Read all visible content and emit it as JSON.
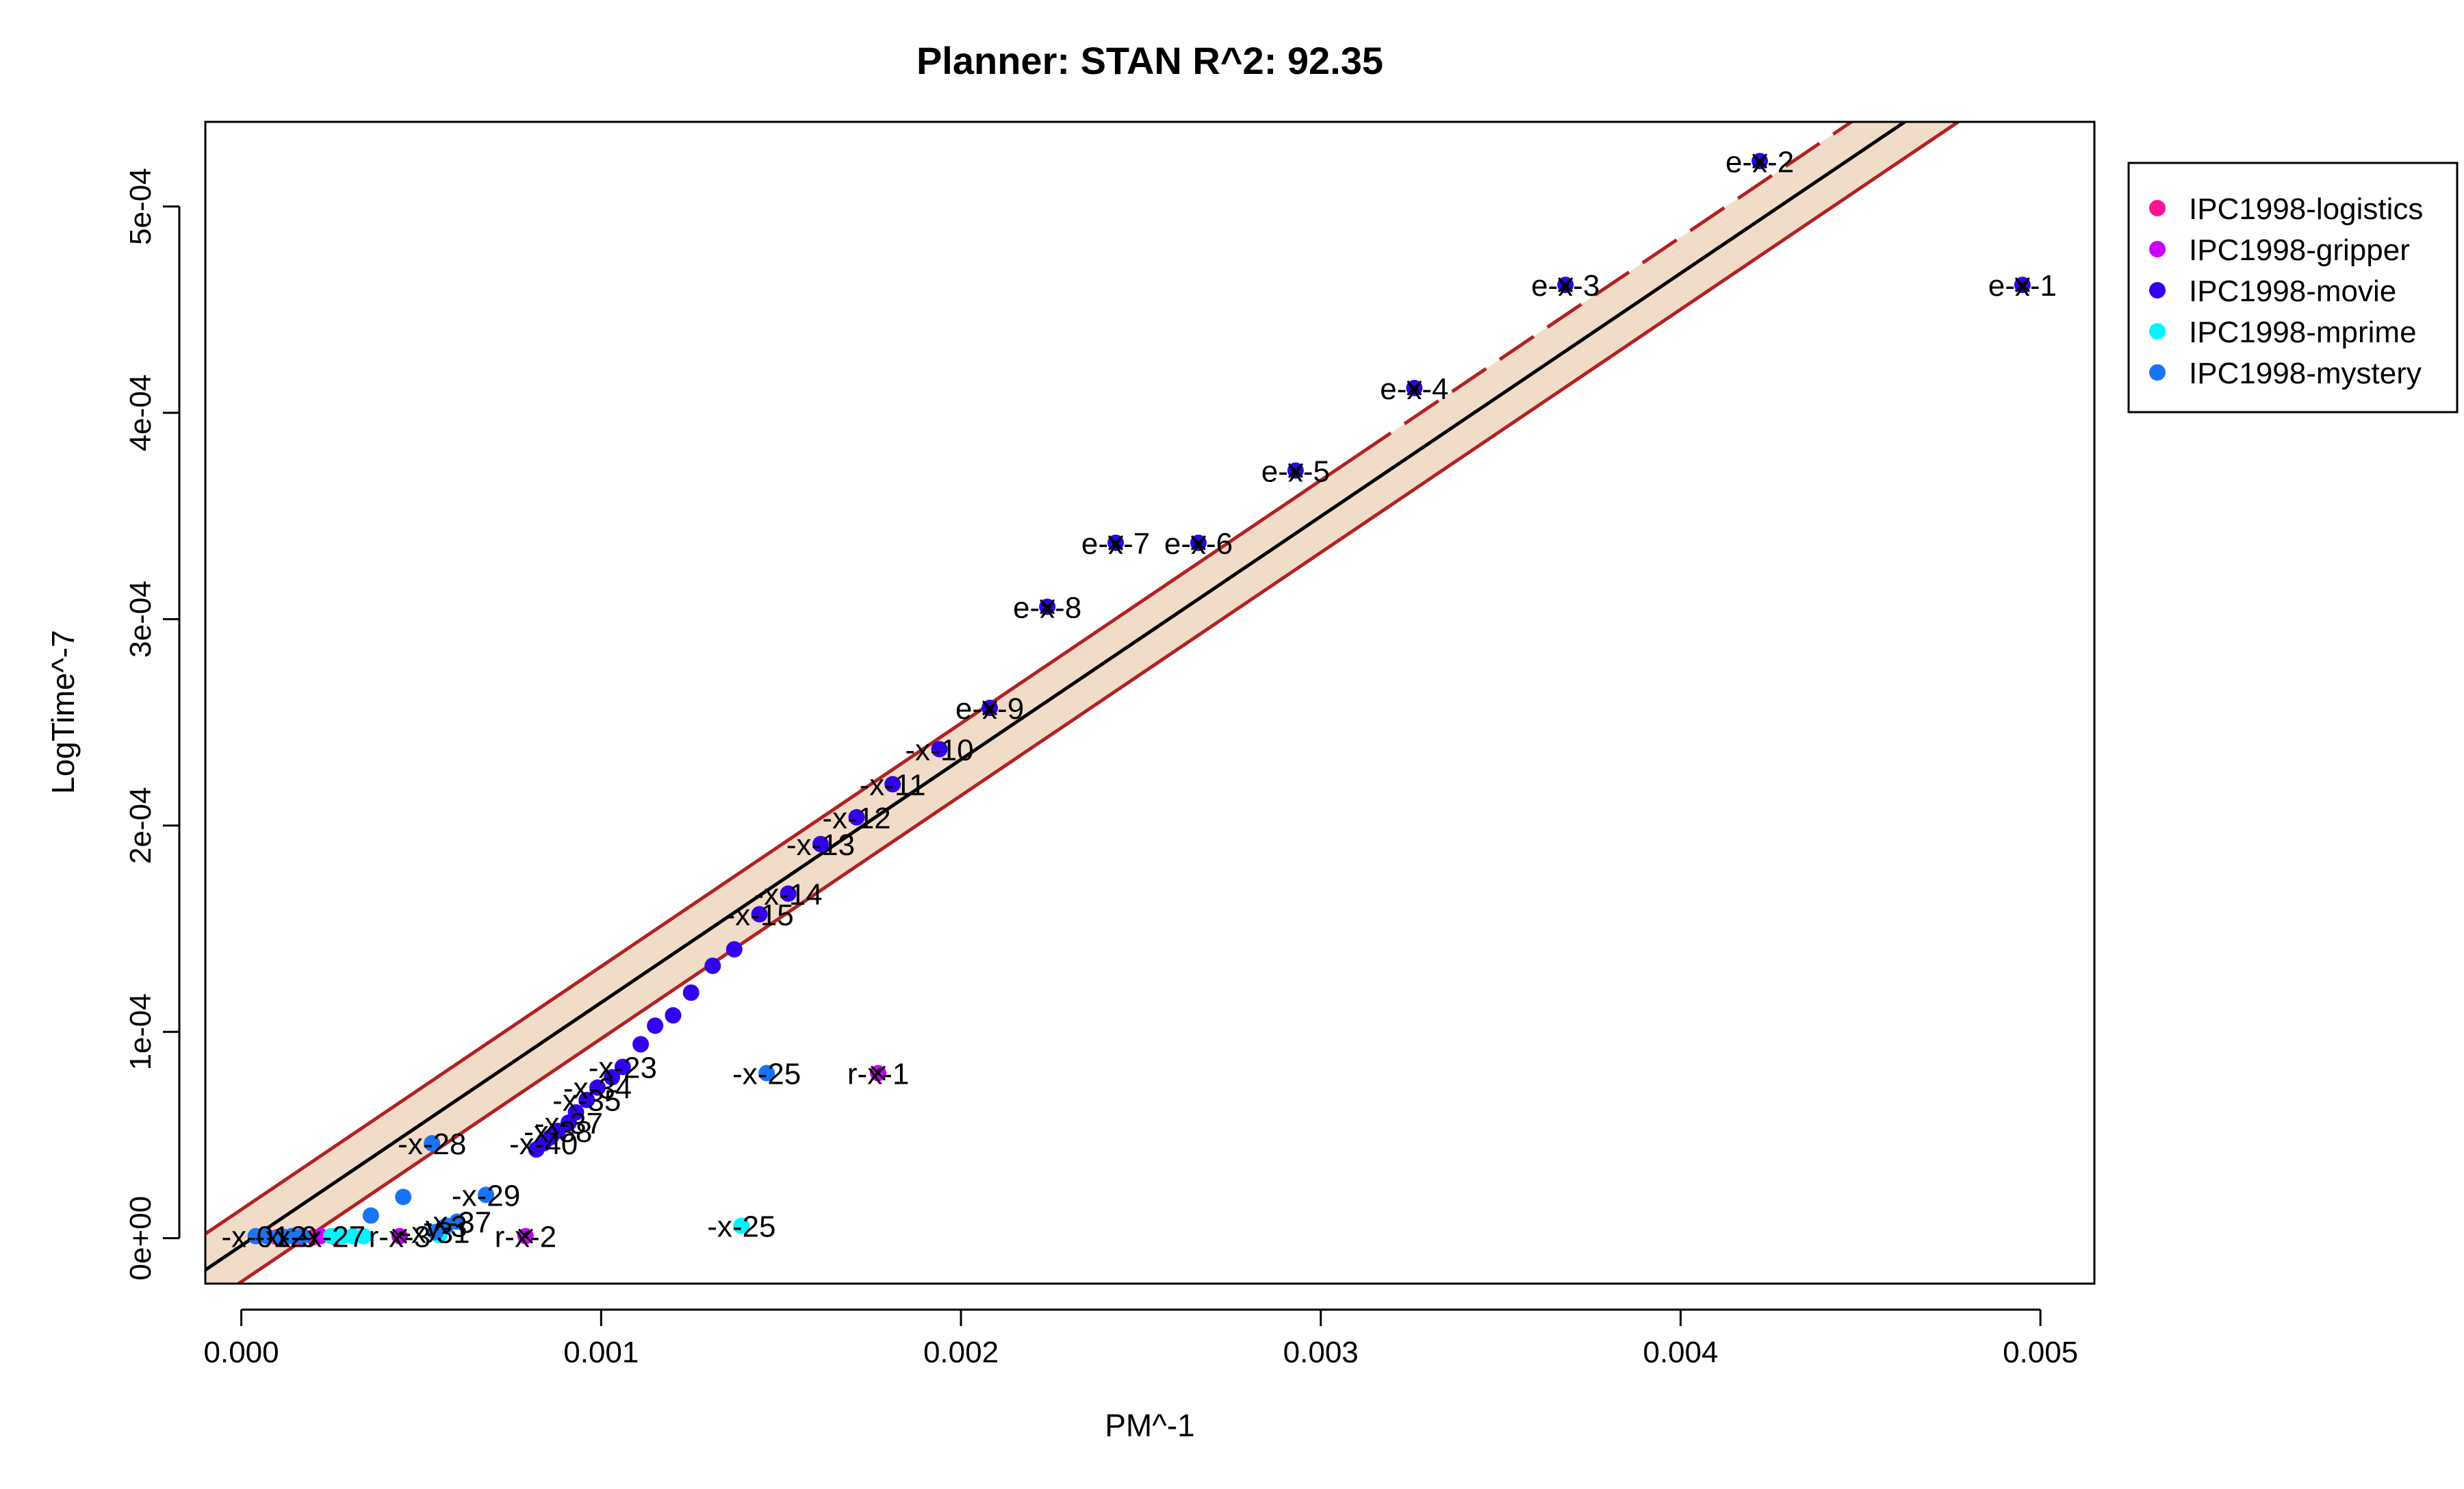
{
  "chart_data": {
    "type": "scatter",
    "title": "Planner: STAN R^2: 92.35",
    "xlabel": "PM^-1",
    "ylabel": "LogTime^-7",
    "xlim": [
      -0.0001,
      0.00515
    ],
    "ylim": [
      -2.2e-05,
      0.000541
    ],
    "x_ticks": [
      {
        "value": 0.0,
        "label": "0.000"
      },
      {
        "value": 0.001,
        "label": "0.001"
      },
      {
        "value": 0.002,
        "label": "0.002"
      },
      {
        "value": 0.003,
        "label": "0.003"
      },
      {
        "value": 0.004,
        "label": "0.004"
      },
      {
        "value": 0.005,
        "label": "0.005"
      }
    ],
    "y_ticks": [
      {
        "value": 0.0,
        "label": "0e+00"
      },
      {
        "value": 0.0001,
        "label": "1e-04"
      },
      {
        "value": 0.0002,
        "label": "2e-04"
      },
      {
        "value": 0.0003,
        "label": "3e-04"
      },
      {
        "value": 0.0004,
        "label": "4e-04"
      },
      {
        "value": 0.0005,
        "label": "5e-04"
      }
    ],
    "grid": false,
    "legend_position": "top-right, outside plot",
    "fit": {
      "slope": 0.1178,
      "intercept": -3.6e-06,
      "band_halfwidth": 1.75e-05,
      "line_color": "#000000",
      "band_edge_color": "#b22222",
      "band_fill_color": "#f0dcc8",
      "extrapolation_start_x": 0.0031
    },
    "series": [
      {
        "name": "IPC1998-logistics",
        "color": "#ff1493",
        "points": [
          {
            "x": 0.0001,
            "y": 5e-07
          },
          {
            "x": 0.00012,
            "y": 5e-07
          },
          {
            "x": 0.00016,
            "y": 5e-07
          },
          {
            "x": 0.0002,
            "y": 5e-07
          },
          {
            "x": 0.00026,
            "y": 5e-07
          }
        ]
      },
      {
        "name": "IPC1998-gripper",
        "color": "#cc00ff",
        "points": [
          {
            "x": 0.00177,
            "y": 8e-05,
            "label": "r-x-1",
            "marked": true
          },
          {
            "x": 0.00079,
            "y": 1e-06,
            "label": "r-x-2",
            "marked": true
          },
          {
            "x": 0.00044,
            "y": 1e-06,
            "label": "r-x-3",
            "marked": true
          },
          {
            "x": 0.00022,
            "y": 1e-06
          }
        ]
      },
      {
        "name": "IPC1998-movie",
        "color": "#3300ee",
        "points": [
          {
            "x": 0.00495,
            "y": 0.000462,
            "label": "e-x-1",
            "marked": true
          },
          {
            "x": 0.00422,
            "y": 0.000522,
            "label": "e-x-2",
            "marked": true
          },
          {
            "x": 0.00368,
            "y": 0.000462,
            "label": "e-x-3",
            "marked": true
          },
          {
            "x": 0.00326,
            "y": 0.000412,
            "label": "e-x-4",
            "marked": true
          },
          {
            "x": 0.00293,
            "y": 0.000372,
            "label": "e-x-5",
            "marked": true
          },
          {
            "x": 0.00266,
            "y": 0.000337,
            "label": "e-x-6",
            "marked": true
          },
          {
            "x": 0.00243,
            "y": 0.000337,
            "label": "e-x-7",
            "marked": true
          },
          {
            "x": 0.00224,
            "y": 0.000306,
            "label": "e-x-8",
            "marked": true
          },
          {
            "x": 0.00208,
            "y": 0.000257,
            "label": "e-x-9",
            "marked": true
          },
          {
            "x": 0.00194,
            "y": 0.000237,
            "label": "-x-10"
          },
          {
            "x": 0.00181,
            "y": 0.00022,
            "label": "-x-11"
          },
          {
            "x": 0.00171,
            "y": 0.000204,
            "label": "-x-12"
          },
          {
            "x": 0.00161,
            "y": 0.000191,
            "label": "-x-13"
          },
          {
            "x": 0.00152,
            "y": 0.000167,
            "label": "-x-14"
          },
          {
            "x": 0.00144,
            "y": 0.000157,
            "label": "-x-15"
          },
          {
            "x": 0.00137,
            "y": 0.00014
          },
          {
            "x": 0.00131,
            "y": 0.000132
          },
          {
            "x": 0.00125,
            "y": 0.000119
          },
          {
            "x": 0.0012,
            "y": 0.000108
          },
          {
            "x": 0.00115,
            "y": 0.000103
          },
          {
            "x": 0.00111,
            "y": 9.4e-05
          },
          {
            "x": 0.00106,
            "y": 8.3e-05,
            "label": "-x-23"
          },
          {
            "x": 0.00103,
            "y": 7.8e-05
          },
          {
            "x": 0.00099,
            "y": 7.3e-05,
            "label": "-x-34"
          },
          {
            "x": 0.00096,
            "y": 6.7e-05,
            "label": "-x-35"
          },
          {
            "x": 0.00093,
            "y": 6.1e-05
          },
          {
            "x": 0.00091,
            "y": 5.6e-05,
            "label": "-x-37"
          },
          {
            "x": 0.00088,
            "y": 5.2e-05,
            "label": "-x-38"
          },
          {
            "x": 0.00086,
            "y": 4.9e-05
          },
          {
            "x": 0.00084,
            "y": 4.6e-05,
            "label": "-x-40"
          },
          {
            "x": 0.00082,
            "y": 4.3e-05
          }
        ]
      },
      {
        "name": "IPC1998-mprime",
        "color": "#00f5ff",
        "points": [
          {
            "x": 0.00139,
            "y": 6e-06,
            "label": "-x-25"
          },
          {
            "x": 0.00034,
            "y": 1e-06
          },
          {
            "x": 0.00031,
            "y": 1e-06
          },
          {
            "x": 0.00028,
            "y": 1e-06
          },
          {
            "x": 0.00025,
            "y": 1e-06,
            "label": "-x-27"
          },
          {
            "x": 0.00055,
            "y": 1.5e-06
          }
        ]
      },
      {
        "name": "IPC1998-mystery",
        "color": "#1874f5",
        "points": [
          {
            "x": 0.00146,
            "y": 8e-05,
            "label": "-x-25"
          },
          {
            "x": 0.00053,
            "y": 4.6e-05,
            "label": "-x-28"
          },
          {
            "x": 0.00068,
            "y": 2.1e-05,
            "label": "-x-29"
          },
          {
            "x": 0.00045,
            "y": 2e-05
          },
          {
            "x": 0.00036,
            "y": 1.1e-05
          },
          {
            "x": 0.0006,
            "y": 8e-06,
            "label": "-x-37"
          },
          {
            "x": 0.00057,
            "y": 6e-06,
            "label": "y-3"
          },
          {
            "x": 0.00054,
            "y": 3e-06,
            "label": "-x-31"
          },
          {
            "x": 4e-05,
            "y": 1e-06,
            "label": "-x-01"
          },
          {
            "x": 7e-05,
            "y": 1e-06
          },
          {
            "x": 0.00011,
            "y": 1e-06,
            "label": "-x-2"
          },
          {
            "x": 0.00014,
            "y": 1e-06,
            "label": "-x-9"
          },
          {
            "x": 0.00017,
            "y": 1e-06
          }
        ]
      }
    ]
  }
}
